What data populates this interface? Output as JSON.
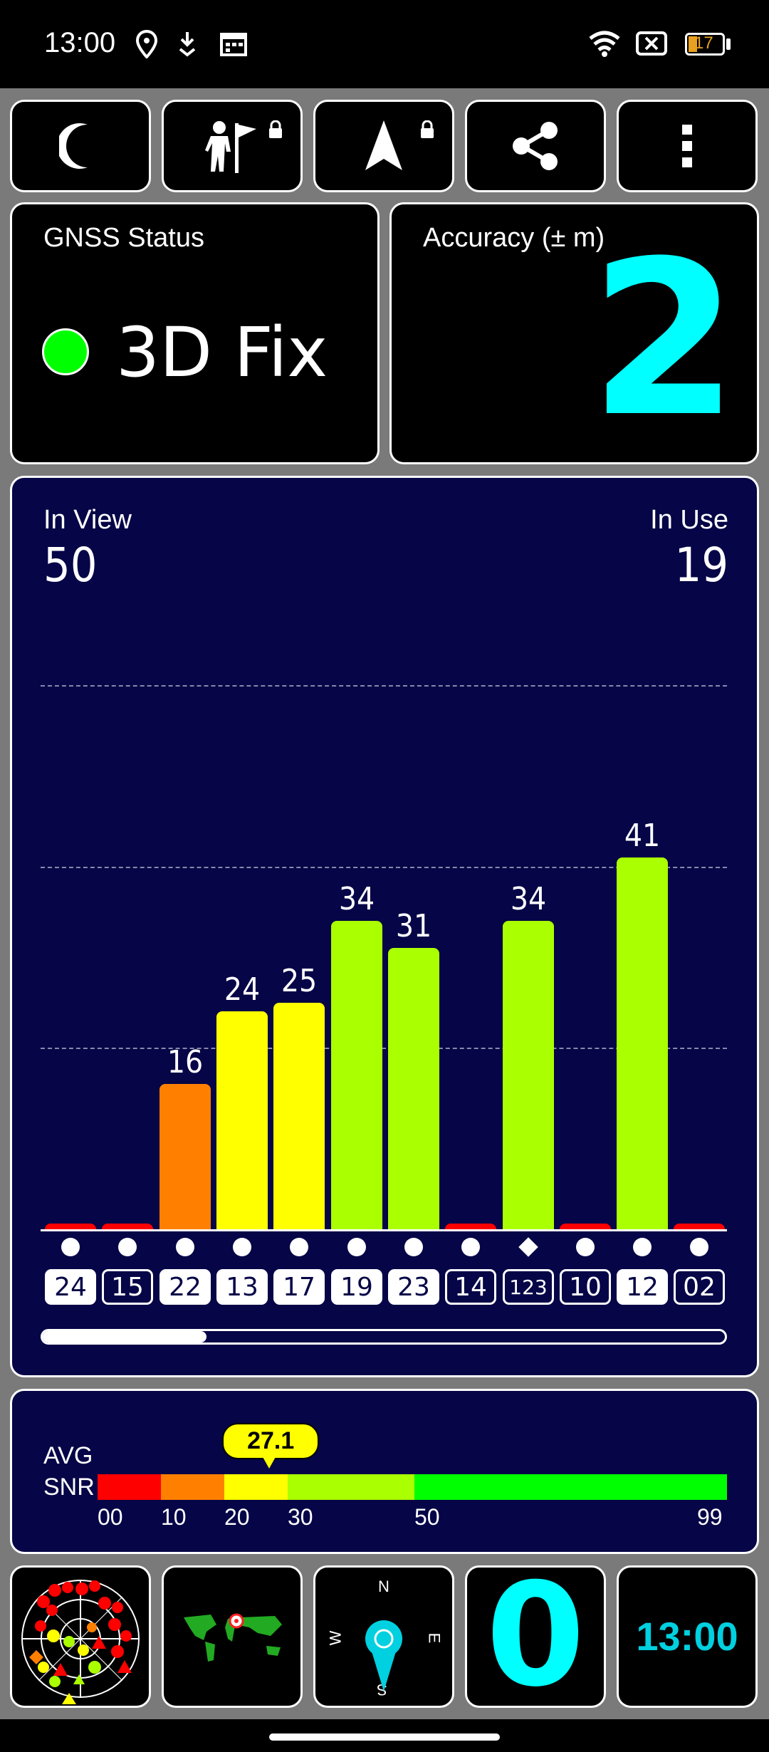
{
  "status_bar": {
    "time": "13:00",
    "battery": "17"
  },
  "toolbar": {
    "buttons": [
      {
        "name": "night-mode-button",
        "icon": "moon-icon"
      },
      {
        "name": "checkpoint-button",
        "icon": "person-flag-icon",
        "locked": true
      },
      {
        "name": "navigate-button",
        "icon": "navigation-arrow-icon",
        "locked": true
      },
      {
        "name": "share-button",
        "icon": "share-icon"
      },
      {
        "name": "more-button",
        "icon": "more-vert-icon"
      }
    ]
  },
  "gnss": {
    "title": "GNSS Status",
    "status": "3D Fix",
    "indicator_color": "#00ff00"
  },
  "accuracy": {
    "title": "Accuracy (± m)",
    "value": "2",
    "color": "#00ffff"
  },
  "satellites": {
    "in_view_label": "In View",
    "in_view": "50",
    "in_use_label": "In Use",
    "in_use": "19"
  },
  "chart_data": {
    "type": "bar",
    "categories": [
      "24",
      "15",
      "22",
      "13",
      "17",
      "19",
      "23",
      "14",
      "123",
      "10",
      "12",
      "02"
    ],
    "values": [
      0,
      0,
      16,
      24,
      25,
      34,
      31,
      0,
      34,
      0,
      41,
      0
    ],
    "labels": [
      "",
      "",
      "16",
      "24",
      "25",
      "34",
      "31",
      "",
      "34",
      "",
      "41",
      ""
    ],
    "in_use": [
      true,
      false,
      true,
      true,
      true,
      true,
      true,
      false,
      false,
      false,
      true,
      false
    ],
    "markers": [
      "circle",
      "circle",
      "circle",
      "circle",
      "circle",
      "circle",
      "circle",
      "circle",
      "diamond",
      "circle",
      "circle",
      "circle"
    ],
    "ylim": [
      0,
      60
    ],
    "grid": true,
    "color_scale": [
      {
        "min": 0,
        "max": 10,
        "color": "#ff0000"
      },
      {
        "min": 10,
        "max": 20,
        "color": "#ff8000"
      },
      {
        "min": 20,
        "max": 30,
        "color": "#ffff00"
      },
      {
        "min": 30,
        "max": 50,
        "color": "#aaff00"
      },
      {
        "min": 50,
        "max": 99,
        "color": "#00ff00"
      }
    ]
  },
  "snr": {
    "label_line1": "AVG",
    "label_line2": "SNR",
    "avg": "27.1",
    "avg_value": 27.1,
    "ticks": [
      "00",
      "10",
      "20",
      "30",
      "50",
      "99"
    ]
  },
  "bottom": {
    "compass": {
      "n": "N",
      "e": "E",
      "s": "S",
      "w": "W"
    },
    "speed": "0",
    "clock": "13:00"
  },
  "colors": {
    "panel": "#050547",
    "accent": "#00ffff",
    "border": "#ffffff"
  }
}
